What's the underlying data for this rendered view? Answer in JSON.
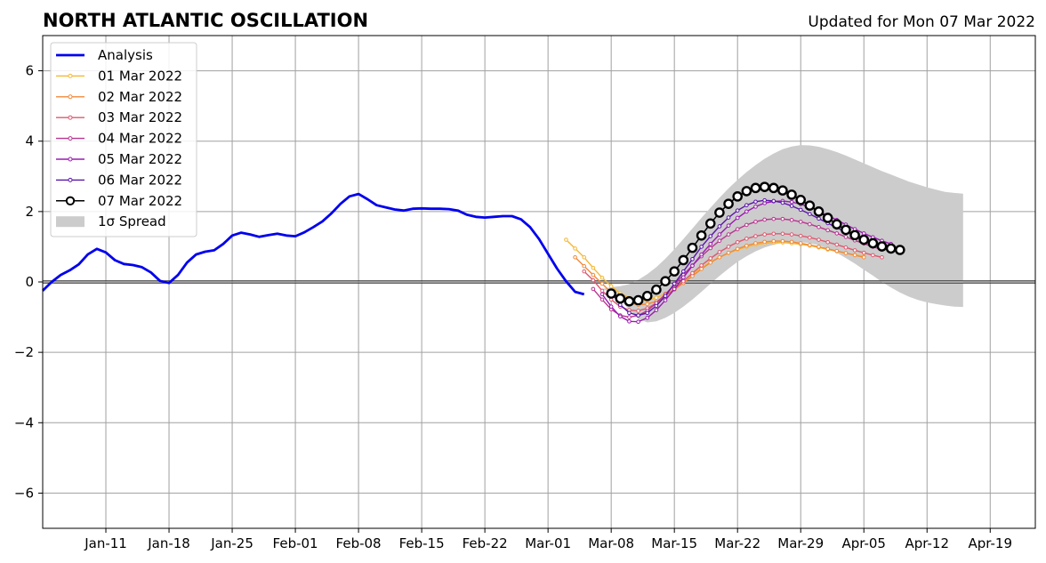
{
  "chart_data": {
    "type": "line",
    "title": "NORTH ATLANTIC OSCILLATION",
    "subtitle": "Updated for Mon 07 Mar 2022",
    "xlabel": "",
    "ylabel": "",
    "x_axis": {
      "type": "date",
      "min": "2022-01-04",
      "max": "2022-04-24"
    },
    "ylim": [
      -7,
      7
    ],
    "yticks": [
      -6,
      -4,
      -2,
      0,
      2,
      4,
      6
    ],
    "ytick_labels": [
      "−6",
      "−4",
      "−2",
      "0",
      "2",
      "4",
      "6"
    ],
    "xticks": [
      "2022-01-11",
      "2022-01-18",
      "2022-01-25",
      "2022-02-01",
      "2022-02-08",
      "2022-02-15",
      "2022-02-22",
      "2022-03-01",
      "2022-03-08",
      "2022-03-15",
      "2022-03-22",
      "2022-03-29",
      "2022-04-05",
      "2022-04-12",
      "2022-04-19"
    ],
    "xtick_labels": [
      "Jan-11",
      "Jan-18",
      "Jan-25",
      "Feb-01",
      "Feb-08",
      "Feb-15",
      "Feb-22",
      "Mar-01",
      "Mar-08",
      "Mar-15",
      "Mar-22",
      "Mar-29",
      "Apr-05",
      "Apr-12",
      "Apr-19"
    ],
    "grid": true,
    "zero_line": true,
    "legend_position": "top-left",
    "analysis": {
      "name": "Analysis",
      "color": "#0000ee",
      "start": "2022-01-04",
      "values": [
        -0.25,
        0.0,
        0.2,
        0.33,
        0.5,
        0.78,
        0.94,
        0.84,
        0.62,
        0.51,
        0.48,
        0.42,
        0.27,
        0.03,
        -0.03,
        0.2,
        0.55,
        0.78,
        0.86,
        0.9,
        1.08,
        1.32,
        1.4,
        1.35,
        1.28,
        1.33,
        1.37,
        1.32,
        1.3,
        1.41,
        1.56,
        1.72,
        1.95,
        2.22,
        2.43,
        2.5,
        2.35,
        2.18,
        2.12,
        2.06,
        2.03,
        2.08,
        2.09,
        2.08,
        2.08,
        2.07,
        2.03,
        1.91,
        1.85,
        1.83,
        1.85,
        1.87,
        1.87,
        1.78,
        1.56,
        1.22,
        0.8,
        0.38,
        0.02,
        -0.28,
        -0.35
      ]
    },
    "forecasts": [
      {
        "name": "01 Mar 2022",
        "color": "#f5b733",
        "start": "2022-03-03",
        "values": [
          1.2,
          0.95,
          0.7,
          0.4,
          0.12,
          -0.12,
          -0.32,
          -0.45,
          -0.52,
          -0.52,
          -0.45,
          -0.33,
          -0.15,
          0.03,
          0.22,
          0.4,
          0.57,
          0.7,
          0.82,
          0.92,
          1.0,
          1.06,
          1.1,
          1.12,
          1.12,
          1.1,
          1.07,
          1.03,
          0.98,
          0.92,
          0.87,
          0.82,
          0.77,
          0.73
        ]
      },
      {
        "name": "02 Mar 2022",
        "color": "#ef8a3c",
        "start": "2022-03-04",
        "values": [
          0.7,
          0.45,
          0.2,
          -0.05,
          -0.3,
          -0.48,
          -0.6,
          -0.65,
          -0.63,
          -0.55,
          -0.4,
          -0.22,
          -0.03,
          0.17,
          0.37,
          0.55,
          0.7,
          0.83,
          0.94,
          1.03,
          1.1,
          1.14,
          1.16,
          1.16,
          1.14,
          1.1,
          1.05,
          1.0,
          0.94,
          0.88,
          0.82,
          0.76,
          0.7
        ]
      },
      {
        "name": "03 Mar 2022",
        "color": "#de5970",
        "start": "2022-03-05",
        "values": [
          0.3,
          0.05,
          -0.25,
          -0.5,
          -0.7,
          -0.8,
          -0.82,
          -0.75,
          -0.6,
          -0.4,
          -0.2,
          0.02,
          0.25,
          0.47,
          0.67,
          0.85,
          1.0,
          1.13,
          1.23,
          1.3,
          1.35,
          1.37,
          1.37,
          1.35,
          1.31,
          1.26,
          1.2,
          1.13,
          1.06,
          0.98,
          0.9,
          0.83,
          0.76,
          0.7
        ]
      },
      {
        "name": "04 Mar 2022",
        "color": "#b8358f",
        "start": "2022-03-06",
        "values": [
          -0.2,
          -0.5,
          -0.78,
          -0.95,
          -1.0,
          -0.95,
          -0.82,
          -0.6,
          -0.35,
          -0.08,
          0.2,
          0.47,
          0.73,
          0.96,
          1.17,
          1.35,
          1.5,
          1.62,
          1.71,
          1.77,
          1.79,
          1.79,
          1.76,
          1.71,
          1.64,
          1.56,
          1.47,
          1.38,
          1.28,
          1.18,
          1.09,
          1.0,
          0.92
        ]
      },
      {
        "name": "05 Mar 2022",
        "color": "#9a1bb0",
        "start": "2022-03-07",
        "values": [
          -0.35,
          -0.7,
          -0.98,
          -1.12,
          -1.13,
          -1.02,
          -0.8,
          -0.52,
          -0.2,
          0.13,
          0.46,
          0.78,
          1.08,
          1.35,
          1.6,
          1.82,
          2.0,
          2.14,
          2.24,
          2.29,
          2.3,
          2.27,
          2.21,
          2.12,
          2.01,
          1.89,
          1.76,
          1.63,
          1.5,
          1.38,
          1.27,
          1.17,
          1.08
        ]
      },
      {
        "name": "06 Mar 2022",
        "color": "#5a14a8",
        "start": "2022-03-08",
        "values": [
          -0.3,
          -0.65,
          -0.88,
          -0.95,
          -0.88,
          -0.68,
          -0.4,
          -0.05,
          0.3,
          0.65,
          1.0,
          1.3,
          1.58,
          1.83,
          2.03,
          2.18,
          2.28,
          2.32,
          2.3,
          2.25,
          2.16,
          2.05,
          1.93,
          1.8,
          1.67,
          1.54,
          1.42,
          1.31,
          1.21,
          1.12,
          1.04,
          0.97,
          0.91
        ]
      }
    ],
    "latest": {
      "name": "07 Mar 2022",
      "color": "#000000",
      "start": "2022-03-08",
      "values": [
        -0.33,
        -0.47,
        -0.55,
        -0.52,
        -0.4,
        -0.22,
        0.02,
        0.3,
        0.62,
        0.97,
        1.32,
        1.66,
        1.97,
        2.22,
        2.43,
        2.58,
        2.67,
        2.7,
        2.67,
        2.6,
        2.48,
        2.33,
        2.17,
        2.0,
        1.82,
        1.64,
        1.48,
        1.33,
        1.2,
        1.1,
        1.01,
        0.95,
        0.91
      ]
    },
    "spread": {
      "name": "1σ Spread",
      "color": "#cccccc",
      "start": "2022-03-07",
      "upper": [
        -0.2,
        -0.15,
        -0.12,
        -0.06,
        0.06,
        0.22,
        0.42,
        0.66,
        0.93,
        1.22,
        1.52,
        1.82,
        2.11,
        2.39,
        2.66,
        2.9,
        3.12,
        3.32,
        3.5,
        3.65,
        3.77,
        3.85,
        3.89,
        3.88,
        3.84,
        3.77,
        3.69,
        3.59,
        3.48,
        3.37,
        3.26,
        3.15,
        3.05,
        2.95,
        2.85,
        2.77,
        2.69,
        2.62,
        2.56,
        2.53,
        2.51
      ],
      "lower": [
        -0.2,
        -0.3,
        -0.5,
        -0.8,
        -1.05,
        -1.15,
        -1.12,
        -1.02,
        -0.88,
        -0.7,
        -0.5,
        -0.28,
        -0.05,
        0.17,
        0.38,
        0.57,
        0.73,
        0.87,
        0.98,
        1.06,
        1.11,
        1.13,
        1.13,
        1.1,
        1.04,
        0.95,
        0.83,
        0.68,
        0.52,
        0.35,
        0.18,
        0.0,
        -0.16,
        -0.3,
        -0.42,
        -0.51,
        -0.58,
        -0.63,
        -0.67,
        -0.7,
        -0.71
      ]
    }
  }
}
